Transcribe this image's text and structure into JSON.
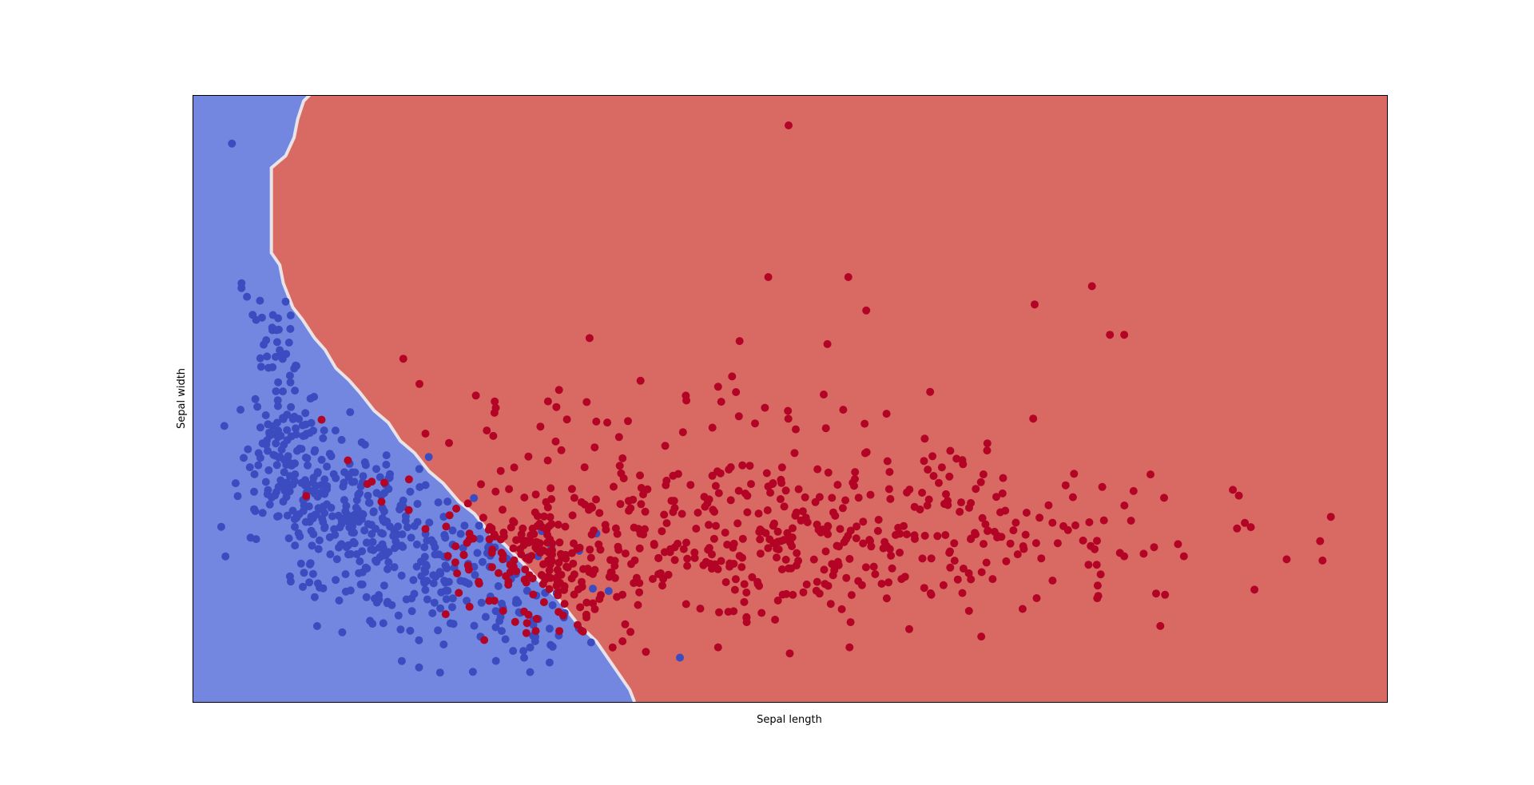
{
  "chart_data": {
    "type": "scatter",
    "title": "",
    "xlabel": "Sepal length",
    "ylabel": "Sepal width",
    "xlim": [
      0,
      100
    ],
    "ylim": [
      0,
      100
    ],
    "ticks_visible": false,
    "grid": false,
    "legend": "none",
    "colors": {
      "region_class_0": "#7387e0",
      "region_class_1": "#d96963",
      "class_0": "#3b4cc0",
      "class_1": "#b40426",
      "frame": "#000000"
    },
    "decision_boundary": [
      [
        9.8,
        100
      ],
      [
        9.3,
        99
      ],
      [
        8.8,
        96
      ],
      [
        8.5,
        93
      ],
      [
        7.8,
        90
      ],
      [
        6.6,
        88
      ],
      [
        6.6,
        74
      ],
      [
        7.3,
        72
      ],
      [
        7.6,
        69
      ],
      [
        8.4,
        65
      ],
      [
        9.2,
        63
      ],
      [
        10.2,
        60
      ],
      [
        11.1,
        58
      ],
      [
        12.0,
        55
      ],
      [
        13.1,
        53
      ],
      [
        14.0,
        51
      ],
      [
        15.2,
        48
      ],
      [
        16.4,
        46
      ],
      [
        17.4,
        43
      ],
      [
        18.6,
        41
      ],
      [
        19.8,
        38
      ],
      [
        21.0,
        36
      ],
      [
        22.3,
        33
      ],
      [
        23.6,
        31
      ],
      [
        24.8,
        28
      ],
      [
        26.1,
        26
      ],
      [
        27.6,
        23
      ],
      [
        29.0,
        20
      ],
      [
        30.6,
        17
      ],
      [
        32.2,
        13
      ],
      [
        33.8,
        10
      ],
      [
        35.2,
        6
      ],
      [
        36.6,
        2
      ],
      [
        37.0,
        0
      ]
    ],
    "series": [
      {
        "class": 0,
        "color": "#3b4cc0",
        "clusters": [
          {
            "n": 40,
            "cx": 6.5,
            "cy": 55,
            "sx": 1.0,
            "sy": 7
          },
          {
            "n": 110,
            "cx": 8.0,
            "cy": 41,
            "sx": 2.0,
            "sy": 5
          },
          {
            "n": 200,
            "cx": 13.0,
            "cy": 31,
            "sx": 3.5,
            "sy": 5
          },
          {
            "n": 150,
            "cx": 20.0,
            "cy": 21,
            "sx": 5.0,
            "sy": 5
          },
          {
            "n": 50,
            "cx": 27.0,
            "cy": 13,
            "sx": 3.5,
            "sy": 4
          }
        ],
        "points": [
          [
            3.3,
            92
          ],
          [
            4.1,
            69
          ],
          [
            4.1,
            68.2
          ],
          [
            40.8,
            7.3
          ]
        ]
      },
      {
        "class": 1,
        "color": "#b40426",
        "clusters": [
          {
            "n": 200,
            "cx": 30.0,
            "cy": 24,
            "sx": 4.5,
            "sy": 6
          },
          {
            "n": 250,
            "cx": 47.0,
            "cy": 27,
            "sx": 9.0,
            "sy": 7
          },
          {
            "n": 150,
            "cx": 64.0,
            "cy": 27,
            "sx": 9.0,
            "sy": 6
          },
          {
            "n": 80,
            "cx": 38.0,
            "cy": 44,
            "sx": 12.0,
            "sy": 9
          }
        ],
        "points": [
          [
            49.9,
            95
          ],
          [
            48.2,
            70
          ],
          [
            54.9,
            70
          ],
          [
            56.4,
            64.5
          ],
          [
            70.5,
            65.5
          ],
          [
            76.8,
            60.5
          ],
          [
            78.0,
            60.5
          ],
          [
            75.3,
            68.5
          ],
          [
            87.6,
            34
          ],
          [
            94.4,
            26.5
          ],
          [
            95.3,
            30.5
          ],
          [
            88.1,
            29.5
          ],
          [
            88.6,
            28.8
          ],
          [
            91.6,
            23.5
          ],
          [
            94.6,
            23.3
          ],
          [
            88.9,
            18.5
          ],
          [
            19.0,
            52.4
          ],
          [
            10.8,
            46.5
          ],
          [
            13.0,
            39.8
          ],
          [
            15.0,
            36.3
          ],
          [
            18.1,
            31.6
          ],
          [
            19.5,
            28.5
          ],
          [
            22.0,
            23.0
          ],
          [
            24.0,
            19.5
          ],
          [
            26.0,
            15.0
          ],
          [
            28.0,
            13.0
          ],
          [
            36.0,
            10.0
          ],
          [
            44.0,
            9.0
          ],
          [
            50.0,
            8.0
          ],
          [
            55.0,
            9.0
          ],
          [
            60.0,
            12.0
          ],
          [
            65.0,
            15.0
          ],
          [
            72.0,
            20.0
          ],
          [
            78.0,
            24.0
          ],
          [
            80.5,
            25.5
          ],
          [
            83.0,
            24.0
          ],
          [
            82.5,
            26.0
          ]
        ]
      }
    ]
  }
}
